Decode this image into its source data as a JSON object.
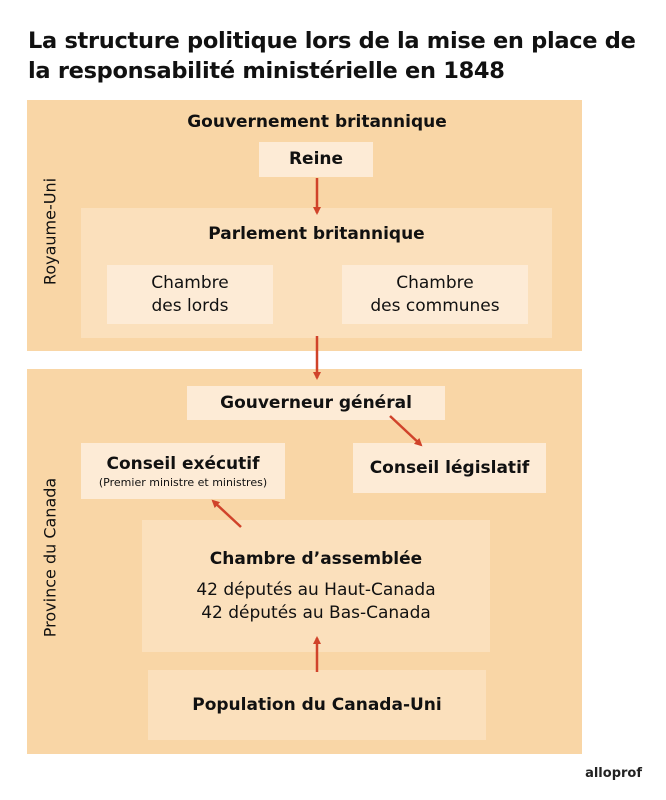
{
  "title": "La structure politique lors de la mise en place de la responsabilité ministérielle en 1848",
  "royaume_uni": {
    "label": "Royaume-Uni",
    "heading": "Gouvernement britannique",
    "reine": "Reine",
    "parlement": "Parlement britannique",
    "lords": [
      "Chambre",
      "des lords"
    ],
    "communes": [
      "Chambre",
      "des communes"
    ]
  },
  "canada": {
    "label": "Province du Canada",
    "gouverneur": "Gouverneur général",
    "executif": "Conseil exécutif",
    "executif_note": "(Premier ministre et ministres)",
    "legislatif": "Conseil législatif",
    "chambre": "Chambre d’assemblée",
    "chambre_lines": [
      "42 députés au Haut-Canada",
      "42 députés au Bas-Canada"
    ],
    "population": "Population du Canada-Uni"
  },
  "logo": "alloprof",
  "colors": {
    "panel": "#f9d6a6",
    "arrow": "#d0432a"
  }
}
